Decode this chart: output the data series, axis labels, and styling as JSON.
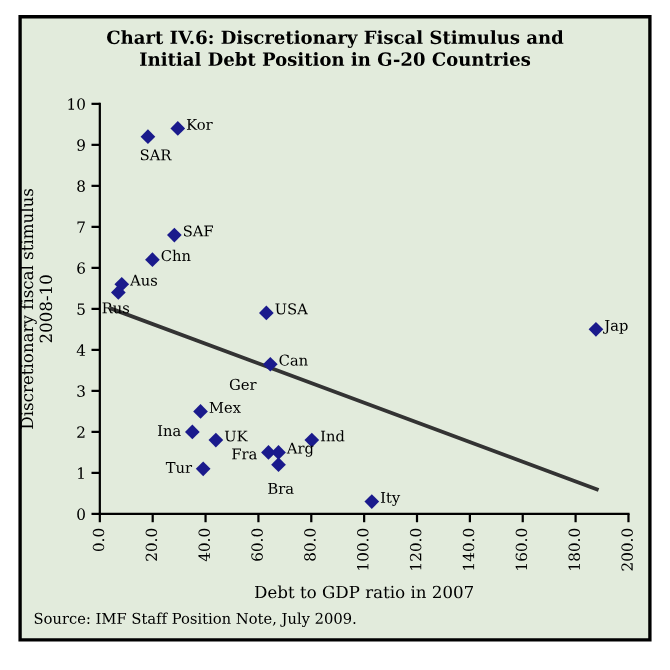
{
  "chart_data": {
    "type": "scatter",
    "title": "Chart IV.6: Discretionary Fiscal Stimulus and\nInitial Debt Position in G-20 Countries",
    "xlabel": "Debt to GDP ratio in 2007",
    "ylabel": "Discretionary fiscal stimulus\n2008-10",
    "series": [
      {
        "color": "#1a1a8c",
        "marker": "diamond",
        "x": [
          29.5,
          18.2,
          28.2,
          19.9,
          8.3,
          7.0,
          63.0,
          63.5,
          64.5,
          38.1,
          35.0,
          43.9,
          80.2,
          63.8,
          67.6,
          67.6,
          39.1,
          102.9,
          187.7
        ],
        "values": [
          9.4,
          9.2,
          6.8,
          6.2,
          5.6,
          5.4,
          4.9,
          null,
          3.65,
          2.5,
          2.0,
          1.8,
          1.8,
          1.5,
          1.5,
          1.2,
          1.1,
          0.3,
          4.5
        ]
      },
      {
        "type": "line",
        "color": "#333333",
        "marker": "none",
        "x": [
          4.5,
          188
        ],
        "values": [
          5.0,
          0.6
        ]
      }
    ],
    "annotations": [
      {
        "text": "Kor",
        "x": 29.5,
        "y": 9.4
      },
      {
        "text": "SAR",
        "x": 18.2,
        "y": 9.2
      },
      {
        "text": "SAF",
        "x": 28.2,
        "y": 6.8
      },
      {
        "text": "Chn",
        "x": 19.9,
        "y": 6.2
      },
      {
        "text": "Aus",
        "x": 8.3,
        "y": 5.6
      },
      {
        "text": "Rus",
        "x": 7.0,
        "y": 5.4
      },
      {
        "text": "USA",
        "x": 63.0,
        "y": 4.9
      },
      {
        "text": "Ger",
        "x": 63.5,
        "y": 3.6
      },
      {
        "text": "Can",
        "x": 64.5,
        "y": 3.65
      },
      {
        "text": "Mex",
        "x": 38.1,
        "y": 2.5
      },
      {
        "text": "Ina",
        "x": 35.0,
        "y": 2.0
      },
      {
        "text": "UK",
        "x": 43.9,
        "y": 1.8
      },
      {
        "text": "Ind",
        "x": 80.2,
        "y": 1.8
      },
      {
        "text": "Fra",
        "x": 63.8,
        "y": 1.5
      },
      {
        "text": "Arg",
        "x": 67.6,
        "y": 1.5
      },
      {
        "text": "Bra",
        "x": 67.6,
        "y": 1.2
      },
      {
        "text": "Tur",
        "x": 39.1,
        "y": 1.1
      },
      {
        "text": "Ity",
        "x": 102.9,
        "y": 0.3
      },
      {
        "text": "Jap",
        "x": 187.7,
        "y": 4.5
      },
      "Source: IMF Staff Position Note, July 2009."
    ],
    "xlim": [
      0,
      200
    ],
    "xticks": [
      {
        "value": 0,
        "label": "0.0"
      },
      {
        "value": 20,
        "label": "20.0"
      },
      {
        "value": 40,
        "label": "40.0"
      },
      {
        "value": 60,
        "label": "60.0"
      },
      {
        "value": 80,
        "label": "80.0"
      },
      {
        "value": 100,
        "label": "100.0"
      },
      {
        "value": 120,
        "label": "120.0"
      },
      {
        "value": 140,
        "label": "140.0"
      },
      {
        "value": 160,
        "label": "160.0"
      },
      {
        "value": 180,
        "label": "180.0"
      },
      {
        "value": 200,
        "label": "200.0"
      }
    ],
    "ylim": [
      0,
      10
    ],
    "yticks": [
      0,
      1,
      2,
      3,
      4,
      5,
      6,
      7,
      8,
      9,
      10
    ],
    "grid": false,
    "legend": false
  }
}
